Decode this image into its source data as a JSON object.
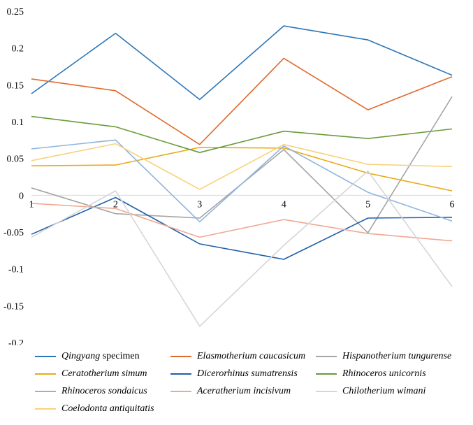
{
  "chart_data": {
    "type": "line",
    "title": "",
    "xlabel": "",
    "ylabel": "",
    "x": [
      1,
      2,
      3,
      4,
      5,
      6
    ],
    "x_tick_labels": [
      "1",
      "2",
      "3",
      "4",
      "5",
      "6"
    ],
    "ylim": [
      -0.2,
      0.25
    ],
    "y_ticks": [
      0.25,
      0.2,
      0.15,
      0.1,
      0.05,
      0,
      -0.05,
      -0.1,
      -0.15,
      -0.2
    ],
    "y_tick_labels": [
      "0.25",
      "0.2",
      "0.15",
      "0.1",
      "0.05",
      "0",
      "-0.05",
      "-0.1",
      "-0.15",
      "-0.2"
    ],
    "grid": false,
    "legend_position": "bottom",
    "series": [
      {
        "name": "Qingyang specimen",
        "italic_part": "Qingyang",
        "plain_part": " specimen",
        "color": "#2e75b6",
        "values": [
          0.138,
          0.22,
          0.13,
          0.23,
          0.211,
          0.163
        ]
      },
      {
        "name": "Elasmotherium caucasicum",
        "italic_part": "Elasmotherium caucasicum",
        "plain_part": "",
        "color": "#e0692c",
        "values": [
          0.158,
          0.142,
          0.069,
          0.186,
          0.116,
          0.161
        ]
      },
      {
        "name": "Hispanotherium tungurense",
        "italic_part": "Hispanotherium tungurense",
        "plain_part": "",
        "color": "#a5a5a5",
        "values": [
          0.01,
          -0.025,
          -0.031,
          0.062,
          -0.051,
          0.134
        ]
      },
      {
        "name": "Ceratotherium simum",
        "italic_part": "Ceratotherium simum",
        "plain_part": "",
        "color": "#e8ab17",
        "values": [
          0.04,
          0.041,
          0.065,
          0.064,
          0.03,
          0.006
        ]
      },
      {
        "name": "Dicerorhinus sumatrensis",
        "italic_part": "Dicerorhinus sumatrensis",
        "plain_part": "",
        "color": "#1f5fa8",
        "values": [
          -0.053,
          -0.003,
          -0.066,
          -0.087,
          -0.031,
          -0.03
        ]
      },
      {
        "name": "Rhinoceros unicornis",
        "italic_part": "Rhinoceros unicornis",
        "plain_part": "",
        "color": "#6a9a3a",
        "values": [
          0.107,
          0.093,
          0.058,
          0.087,
          0.077,
          0.09
        ]
      },
      {
        "name": "Rhinoceros sondaicus",
        "italic_part": "Rhinoceros sondaicus",
        "plain_part": "",
        "color": "#8fb4dc",
        "values": [
          0.063,
          0.075,
          -0.036,
          0.067,
          0.004,
          -0.035
        ]
      },
      {
        "name": "Aceratherium incisivum",
        "italic_part": "Aceratherium incisivum",
        "plain_part": "",
        "color": "#f0a890",
        "values": [
          -0.011,
          -0.018,
          -0.057,
          -0.033,
          -0.052,
          -0.062
        ]
      },
      {
        "name": "Chilotherium wimani",
        "italic_part": "Chilotherium wimani",
        "plain_part": "",
        "color": "#d6d6d6",
        "values": [
          -0.057,
          0.006,
          -0.178,
          -0.068,
          0.033,
          -0.124
        ]
      },
      {
        "name": "Coelodonta antiquitatis",
        "italic_part": "Coelodonta antiquitatis",
        "plain_part": "",
        "color": "#f7d27a",
        "values": [
          0.047,
          0.07,
          0.008,
          0.069,
          0.042,
          0.039
        ]
      }
    ]
  }
}
